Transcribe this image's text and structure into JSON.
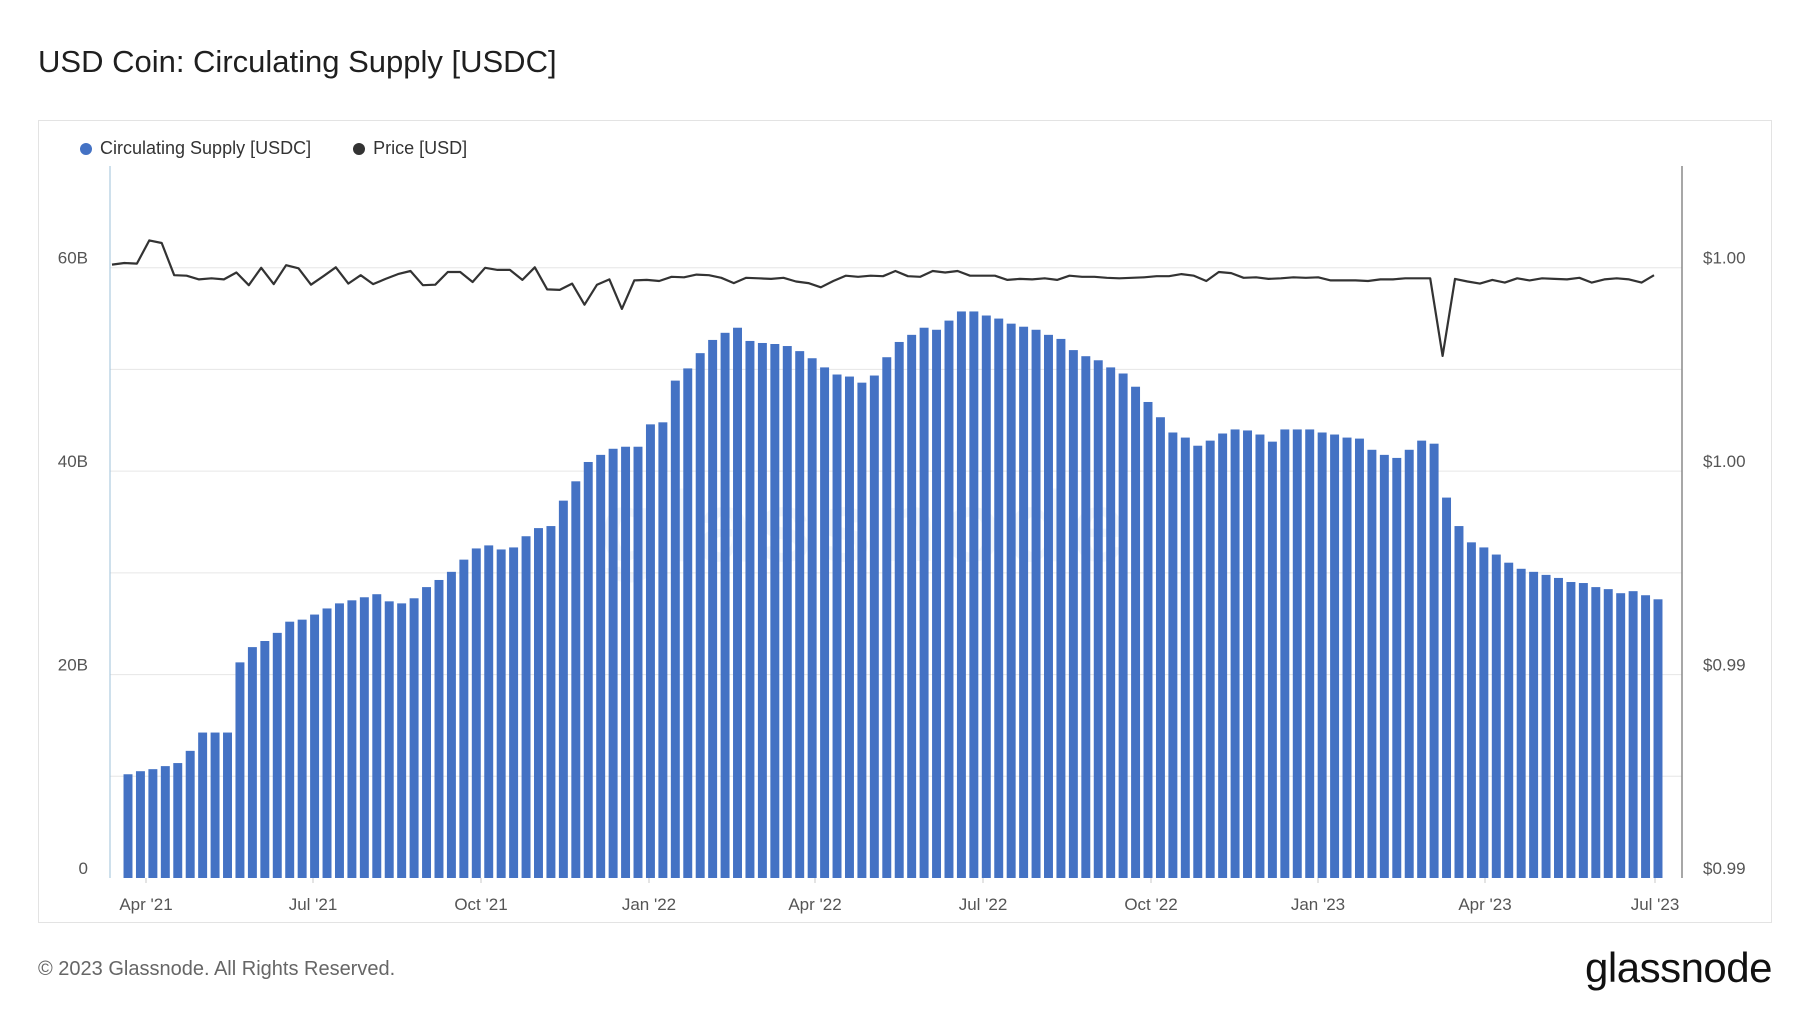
{
  "title": "USD Coin: Circulating Supply [USDC]",
  "legend": [
    {
      "label": "Circulating Supply [USDC]",
      "color": "#4472c4"
    },
    {
      "label": "Price [USD]",
      "color": "#333333"
    }
  ],
  "footer": "© 2023 Glassnode. All Rights Reserved.",
  "brand": "glassnode",
  "watermark": "glassnode",
  "chart_data": {
    "type": "bar",
    "x_tick_labels": [
      "Apr '21",
      "Jul '21",
      "Oct '21",
      "Jan '22",
      "Apr '22",
      "Jul '22",
      "Oct '22",
      "Jan '23",
      "Apr '23",
      "Jul '23"
    ],
    "y_left_ticks": [
      "0",
      "20B",
      "40B",
      "60B"
    ],
    "y_left_range": [
      0,
      70
    ],
    "y_right_ticks": [
      "$0.99",
      "$0.99",
      "$1.00",
      "$1.00"
    ],
    "y_right_range": [
      0.988,
      1.0015
    ],
    "grid": true,
    "legend_position": "top-left",
    "series": [
      {
        "name": "Circulating Supply [USDC]",
        "axis": "left",
        "chart": "bar",
        "color": "#4472c4",
        "values": [
          10.2,
          10.5,
          10.7,
          11.0,
          11.3,
          12.5,
          14.3,
          14.3,
          14.3,
          21.2,
          22.7,
          23.3,
          24.1,
          25.2,
          25.4,
          25.9,
          26.5,
          27.0,
          27.3,
          27.6,
          27.9,
          27.2,
          27.0,
          27.5,
          28.6,
          29.3,
          30.1,
          31.3,
          32.4,
          32.7,
          32.3,
          32.5,
          33.6,
          34.4,
          34.6,
          37.1,
          39.0,
          40.9,
          41.6,
          42.2,
          42.4,
          42.4,
          44.6,
          44.8,
          48.9,
          50.1,
          51.6,
          52.9,
          53.6,
          54.1,
          52.8,
          52.6,
          52.5,
          52.3,
          51.8,
          51.1,
          50.2,
          49.5,
          49.3,
          48.7,
          49.4,
          51.2,
          52.7,
          53.4,
          54.1,
          53.9,
          54.8,
          55.7,
          55.7,
          55.3,
          55.0,
          54.5,
          54.2,
          53.9,
          53.4,
          53.0,
          51.9,
          51.3,
          50.9,
          50.2,
          49.6,
          48.3,
          46.8,
          45.3,
          43.8,
          43.3,
          42.5,
          43.0,
          43.7,
          44.1,
          44.0,
          43.6,
          42.9,
          44.1,
          44.1,
          44.1,
          43.8,
          43.6,
          43.3,
          43.2,
          42.1,
          41.6,
          41.3,
          42.1,
          43.0,
          42.7,
          37.4,
          34.6,
          33.0,
          32.5,
          31.8,
          31.0,
          30.4,
          30.1,
          29.8,
          29.5,
          29.1,
          29.0,
          28.6,
          28.4,
          28.0,
          28.2,
          27.8,
          27.4
        ]
      },
      {
        "name": "Price [USD]",
        "axis": "right",
        "chart": "line",
        "color": "#333333",
        "values": [
          0.99963,
          0.99966,
          0.99965,
          1.00009,
          1.00004,
          0.99943,
          0.99942,
          0.99935,
          0.99937,
          0.99935,
          0.99948,
          0.99924,
          0.99957,
          0.99926,
          0.99962,
          0.99956,
          0.99925,
          0.99941,
          0.99958,
          0.99927,
          0.99943,
          0.99926,
          0.99936,
          0.99945,
          0.99951,
          0.99924,
          0.99925,
          0.99949,
          0.99949,
          0.9993,
          0.99957,
          0.99953,
          0.99953,
          0.99934,
          0.99958,
          0.99916,
          0.99915,
          0.99927,
          0.99887,
          0.99925,
          0.99935,
          0.99879,
          0.99933,
          0.99934,
          0.99932,
          0.9994,
          0.99939,
          0.99944,
          0.99943,
          0.99938,
          0.99928,
          0.99938,
          0.99937,
          0.99936,
          0.99938,
          0.99931,
          0.99928,
          0.9992,
          0.99932,
          0.99942,
          0.9994,
          0.99942,
          0.99941,
          0.99951,
          0.99941,
          0.9994,
          0.99951,
          0.99948,
          0.99951,
          0.99942,
          0.99942,
          0.99942,
          0.99934,
          0.99936,
          0.99935,
          0.99937,
          0.99934,
          0.99942,
          0.9994,
          0.9994,
          0.99938,
          0.99937,
          0.99938,
          0.99939,
          0.99941,
          0.99941,
          0.99945,
          0.99942,
          0.99932,
          0.99949,
          0.99947,
          0.99938,
          0.99939,
          0.99936,
          0.99937,
          0.99939,
          0.99938,
          0.99939,
          0.99933,
          0.99933,
          0.99933,
          0.99932,
          0.99935,
          0.99935,
          0.99937,
          0.99937,
          0.99937,
          0.9979,
          0.99936,
          0.99931,
          0.99927,
          0.99934,
          0.99929,
          0.99937,
          0.99933,
          0.99937,
          0.99936,
          0.99935,
          0.99938,
          0.99929,
          0.99935,
          0.99937,
          0.99935,
          0.99929,
          0.99943
        ]
      }
    ]
  }
}
